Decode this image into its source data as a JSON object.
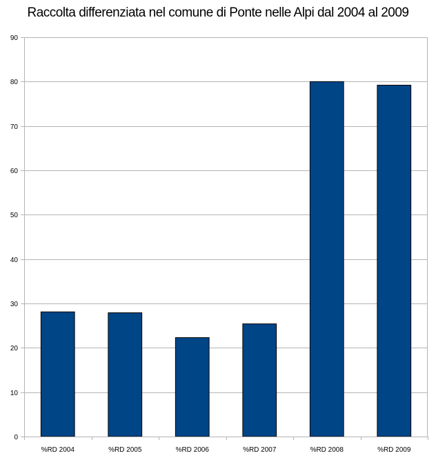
{
  "chart_data": {
    "type": "bar",
    "title": "Raccolta differenziata nel comune di Ponte nelle Alpi dal 2004 al 2009",
    "categories": [
      "%RD 2004",
      "%RD 2005",
      "%RD 2006",
      "%RD 2007",
      "%RD 2008",
      "%RD 2009"
    ],
    "values": [
      28.1,
      27.9,
      22.3,
      25.4,
      80.0,
      79.2
    ],
    "ylim": [
      0,
      90
    ],
    "yticks": [
      "0",
      "10",
      "20",
      "30",
      "40",
      "50",
      "60",
      "70",
      "80",
      "90"
    ],
    "grid": true,
    "legend": "none",
    "bar_color": "#004586",
    "bar_outline_color": "#000000",
    "grid_color": "#b3b3b3"
  }
}
